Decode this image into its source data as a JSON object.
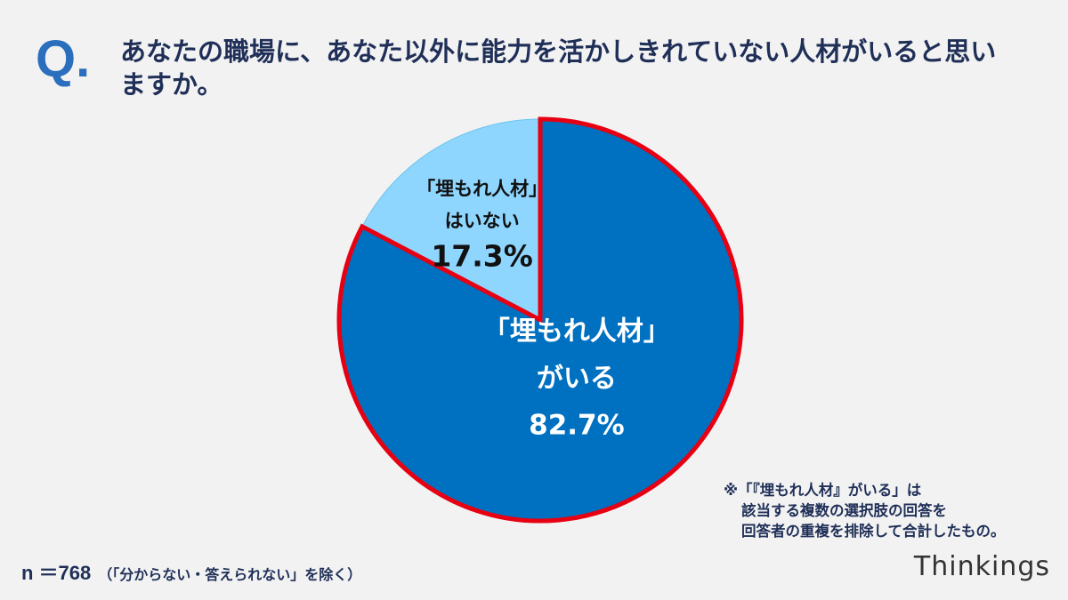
{
  "header": {
    "q_mark": "Q.",
    "question": "あなたの職場に、あなた以外に能力を活かしきれていない人材がいると思いますか。"
  },
  "chart_data": {
    "type": "pie",
    "start_angle_deg": 0,
    "direction": "clockwise",
    "slices": [
      {
        "lines": [
          "「埋もれ人材」",
          "がいる"
        ],
        "value": 82.7,
        "value_label": "82.7%",
        "color": "#0070c0",
        "text_color": "#ffffff",
        "outlined": true,
        "outline_color": "#e60012"
      },
      {
        "lines": [
          "「埋もれ人材」",
          "はいない"
        ],
        "value": 17.3,
        "value_label": "17.3%",
        "color": "#8fd6ff",
        "text_color": "#111111",
        "outlined": false
      }
    ]
  },
  "note": {
    "line1": "※「『埋もれ人材』がいる」は",
    "line2": "該当する複数の選択肢の回答を",
    "line3": "回答者の重複を排除して合計したもの。"
  },
  "footer": {
    "sample_size": "n ＝768",
    "exclusion": "（「分からない・答えられない」を除く）",
    "brand": "Thinkings"
  }
}
